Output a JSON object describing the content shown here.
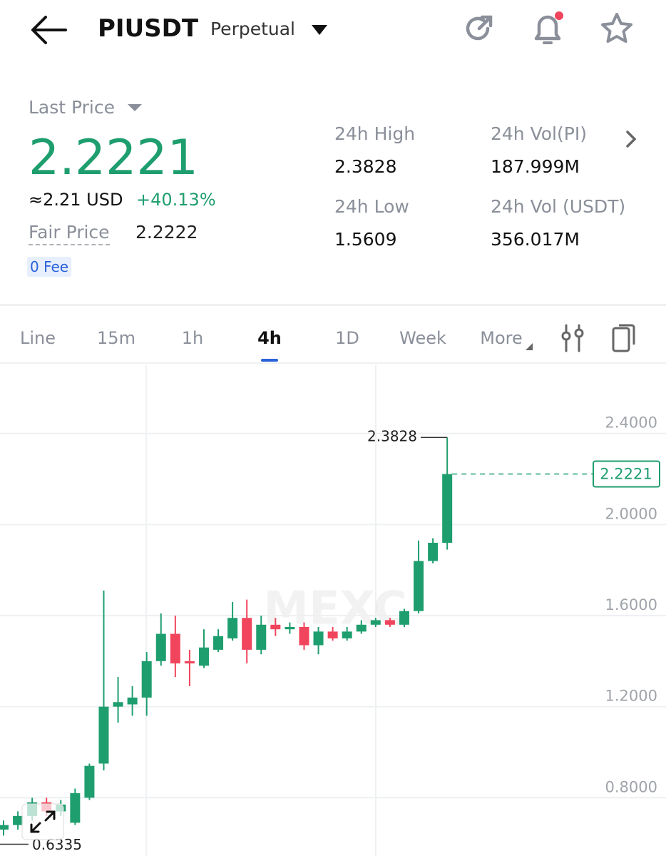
{
  "header": {
    "symbol": "PIUSDT",
    "contract": "Perpetual"
  },
  "ticker": {
    "last_price_label": "Last Price",
    "last_price": "2.2221",
    "usd": "≈2.21 USD",
    "change": "+40.13%",
    "fair_price_label": "Fair Price",
    "fair_price": "2.2222",
    "fee_badge": "0 Fee",
    "stats": [
      {
        "label": "24h High",
        "value": "2.3828"
      },
      {
        "label": "24h Vol(PI)",
        "value": "187.999M"
      },
      {
        "label": "24h Low",
        "value": "1.5609"
      },
      {
        "label": "24h Vol (USDT)",
        "value": "356.017M"
      }
    ]
  },
  "tabs": {
    "items": [
      "Line",
      "15m",
      "1h",
      "4h",
      "1D",
      "Week",
      "More"
    ],
    "active": 3
  },
  "chart_data": {
    "type": "candlestick",
    "watermark": "MEXC",
    "open": [
      0.66,
      0.68,
      0.72,
      0.78,
      0.74,
      0.69,
      0.8,
      0.95,
      1.2,
      1.21,
      1.24,
      1.4,
      1.52,
      1.4,
      1.38,
      1.45,
      1.5,
      1.59,
      1.45,
      1.56,
      1.54,
      1.55,
      1.47,
      1.53,
      1.5,
      1.53,
      1.56,
      1.58,
      1.56,
      1.62,
      1.84,
      1.92
    ],
    "high": [
      0.7,
      0.74,
      0.8,
      0.8,
      0.79,
      0.84,
      0.95,
      1.71,
      1.33,
      1.29,
      1.44,
      1.61,
      1.6,
      1.45,
      1.54,
      1.54,
      1.66,
      1.67,
      1.6,
      1.59,
      1.57,
      1.57,
      1.55,
      1.55,
      1.55,
      1.58,
      1.59,
      1.59,
      1.63,
      1.93,
      1.94,
      2.3828
    ],
    "low": [
      0.6335,
      0.66,
      0.7,
      0.72,
      0.72,
      0.68,
      0.79,
      0.92,
      1.13,
      1.16,
      1.16,
      1.38,
      1.33,
      1.29,
      1.37,
      1.44,
      1.49,
      1.39,
      1.43,
      1.51,
      1.52,
      1.45,
      1.43,
      1.49,
      1.49,
      1.52,
      1.55,
      1.55,
      1.55,
      1.61,
      1.83,
      1.89
    ],
    "close": [
      0.68,
      0.72,
      0.78,
      0.74,
      0.77,
      0.82,
      0.94,
      1.2,
      1.22,
      1.24,
      1.4,
      1.52,
      1.39,
      1.39,
      1.46,
      1.51,
      1.59,
      1.45,
      1.56,
      1.54,
      1.55,
      1.47,
      1.53,
      1.5,
      1.53,
      1.56,
      1.58,
      1.56,
      1.62,
      1.84,
      1.92,
      2.2221
    ],
    "up_color": "#1e9e6e",
    "down_color": "#f0455c",
    "ylim": [
      0.544,
      2.7
    ],
    "yticks": [
      {
        "value": 0.8,
        "label": "0.8000"
      },
      {
        "value": 1.2,
        "label": "1.2000"
      },
      {
        "value": 1.6,
        "label": "1.6000"
      },
      {
        "value": 2.0,
        "label": "2.0000"
      },
      {
        "value": 2.4,
        "label": "2.4000"
      }
    ],
    "grid": true,
    "max_label": 2.3828,
    "min_label": 0.6335,
    "last_price_label": 2.2221
  }
}
